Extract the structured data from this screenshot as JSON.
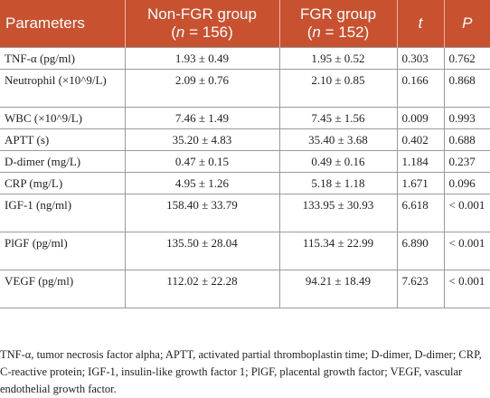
{
  "table": {
    "headers": [
      {
        "line1": "Parameters",
        "line2": ""
      },
      {
        "line1": "Non-FGR group",
        "line2": "(n = 156)"
      },
      {
        "line1": "FGR group",
        "line2": "(n = 152)"
      },
      {
        "line1": "t",
        "line2": ""
      },
      {
        "line1": "P",
        "line2": ""
      }
    ],
    "rows": [
      {
        "parameter": "TNF-α (pg/ml)",
        "non_fgr": "1.93 ± 0.49",
        "fgr": "1.95 ± 0.52",
        "t": "0.303",
        "p": "0.762"
      },
      {
        "parameter": "Neutrophil (×10^9/L)",
        "non_fgr": "2.09 ± 0.76",
        "fgr": "2.10 ± 0.85",
        "t": "0.166",
        "p": "0.868"
      },
      {
        "parameter": "WBC (×10^9/L)",
        "non_fgr": "7.46 ± 1.49",
        "fgr": "7.45 ± 1.56",
        "t": "0.009",
        "p": "0.993"
      },
      {
        "parameter": "APTT (s)",
        "non_fgr": "35.20 ± 4.83",
        "fgr": "35.40 ± 3.68",
        "t": "0.402",
        "p": "0.688"
      },
      {
        "parameter": "D-dimer (mg/L)",
        "non_fgr": "0.47 ± 0.15",
        "fgr": "0.49 ± 0.16",
        "t": "1.184",
        "p": "0.237"
      },
      {
        "parameter": "CRP (mg/L)",
        "non_fgr": "4.95 ± 1.26",
        "fgr": "5.18 ± 1.18",
        "t": "1.671",
        "p": "0.096"
      },
      {
        "parameter": "IGF-1 (ng/ml)",
        "non_fgr": "158.40 ± 33.79",
        "fgr": "133.95 ± 30.93",
        "t": "6.618",
        "p": "< 0.001"
      },
      {
        "parameter": "PlGF (pg/ml)",
        "non_fgr": "135.50 ± 28.04",
        "fgr": "115.34 ± 22.99",
        "t": "6.890",
        "p": "< 0.001"
      },
      {
        "parameter": "VEGF (pg/ml)",
        "non_fgr": "112.02 ± 22.28",
        "fgr": "94.21 ± 18.49",
        "t": "7.623",
        "p": "< 0.001"
      }
    ]
  },
  "footnote": "TNF-α, tumor necrosis factor alpha; APTT, activated partial thromboplastin time; D-dimer, D-dimer; CRP, C-reactive protein; IGF-1, insulin-like growth factor 1; PlGF, placental growth factor; VEGF, vascular endothelial growth factor.",
  "colors": {
    "header_bg": "#c8512f",
    "header_text": "#ffffff",
    "rule": "#9a9a9a"
  }
}
